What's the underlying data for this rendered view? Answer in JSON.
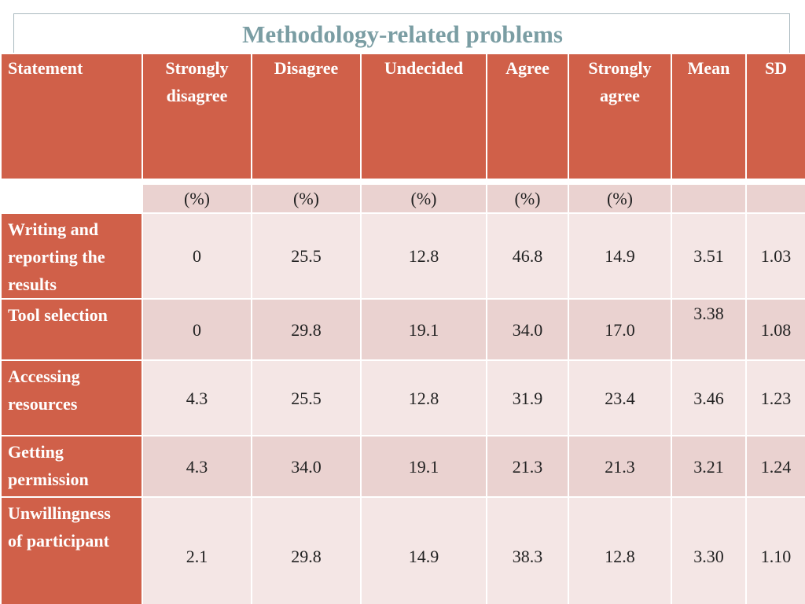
{
  "title": "Methodology-related problems",
  "headers": {
    "statement": "Statement",
    "strongly_disagree": [
      "Strongly",
      "disagree"
    ],
    "disagree": "Disagree",
    "undecided": "Undecided",
    "agree": "Agree",
    "strongly_agree": [
      "Strongly",
      "agree"
    ],
    "mean": "Mean",
    "sd": "SD"
  },
  "units": [
    "(%)",
    "(%)",
    "(%)",
    "(%)",
    "(%)"
  ],
  "rows": [
    {
      "statement": [
        "Writing and",
        "reporting the",
        "results"
      ],
      "strongly_disagree": "0",
      "disagree": "25.5",
      "undecided": "12.8",
      "agree": "46.8",
      "strongly_agree": "14.9",
      "mean": "3.51",
      "sd": "1.03"
    },
    {
      "statement": [
        "Tool selection"
      ],
      "strongly_disagree": "0",
      "disagree": "29.8",
      "undecided": "19.1",
      "agree": "34.0",
      "strongly_agree": "17.0",
      "mean": "3.38",
      "sd": "1.08"
    },
    {
      "statement": [
        "Accessing",
        "resources"
      ],
      "strongly_disagree": "4.3",
      "disagree": "25.5",
      "undecided": "12.8",
      "agree": "31.9",
      "strongly_agree": "23.4",
      "mean": "3.46",
      "sd": "1.23"
    },
    {
      "statement": [
        "Getting",
        "permission"
      ],
      "strongly_disagree": "4.3",
      "disagree": "34.0",
      "undecided": "19.1",
      "agree": "21.3",
      "strongly_agree": "21.3",
      "mean": "3.21",
      "sd": "1.24"
    },
    {
      "statement": [
        "Unwillingness",
        "of participant"
      ],
      "strongly_disagree": "2.1",
      "disagree": "29.8",
      "undecided": "14.9",
      "agree": "38.3",
      "strongly_agree": "12.8",
      "mean": "3.30",
      "sd": "1.10"
    }
  ],
  "colors": {
    "header": "#d06049",
    "row_dark": "#ead2d0",
    "row_light": "#f4e6e5",
    "title": "#7a9da3"
  }
}
